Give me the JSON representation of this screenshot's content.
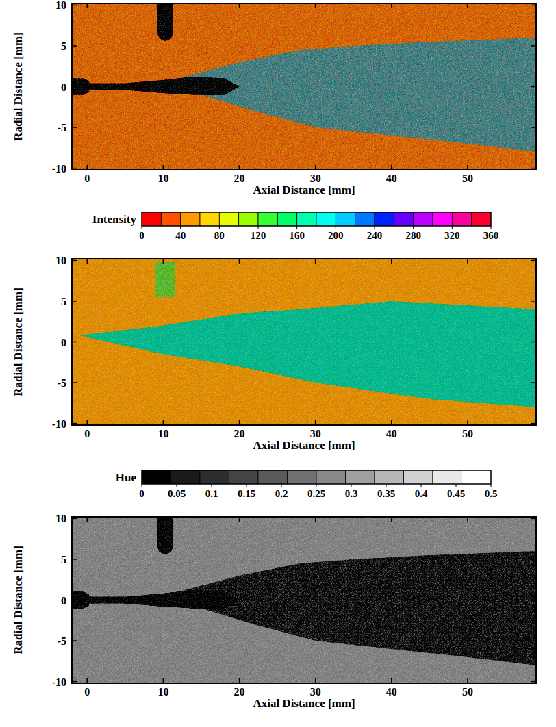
{
  "chart_data": [
    {
      "type": "image",
      "xlabel": "Axial Distance [mm]",
      "ylabel": "Radial Distance [mm]",
      "xlim": [
        -2,
        59
      ],
      "ylim": [
        -10.2,
        10.2
      ],
      "xticks": [
        0,
        10,
        20,
        30,
        40,
        50
      ],
      "yticks": [
        -10,
        -5,
        0,
        5,
        10
      ],
      "color": "#e8942c",
      "shapes": [
        {
          "color": "#86a3a4",
          "x": [
            12,
            20,
            28,
            35,
            45,
            59,
            59,
            50,
            40,
            30,
            22,
            15
          ],
          "y": [
            1,
            3,
            4.5,
            5,
            5.5,
            6,
            -8,
            -7,
            -6,
            -5,
            -3,
            -1
          ]
        },
        {
          "color": "#161616",
          "x": [
            0,
            5,
            10,
            14,
            18,
            20,
            18,
            14,
            10,
            5,
            0
          ],
          "y": [
            0.4,
            0.4,
            0.8,
            1.2,
            1,
            0,
            -1,
            -1,
            -0.8,
            -0.4,
            -0.4
          ]
        },
        {
          "color": "#0a0a0a",
          "x": [
            -2,
            -0.5,
            0.2,
            0.4,
            0.2,
            -0.5,
            -2
          ],
          "y": [
            1,
            1,
            0.7,
            0,
            -0.7,
            -1,
            -1
          ]
        },
        {
          "color": "#0a0a0a",
          "x": [
            9.2,
            11.3,
            11.3,
            11,
            10.25,
            9.5,
            9.2
          ],
          "y": [
            10.2,
            10.2,
            6.6,
            5.9,
            5.6,
            5.9,
            6.6
          ]
        }
      ]
    },
    {
      "type": "image",
      "xlabel": "Axial Distance [mm]",
      "ylabel": "Radial Distance [mm]",
      "xlim": [
        -2,
        59
      ],
      "ylim": [
        -10.2,
        10.2
      ],
      "xticks": [
        0,
        10,
        20,
        30,
        40,
        50
      ],
      "yticks": [
        -10,
        -5,
        0,
        5,
        10
      ],
      "color": "#f0ae30",
      "colorbar": {
        "label": "Intensity",
        "range": [
          0,
          360
        ],
        "ticks": [
          0,
          40,
          80,
          120,
          160,
          200,
          240,
          280,
          320,
          360
        ],
        "colors": [
          "#ff0000",
          "#ff5000",
          "#ff9900",
          "#ffd800",
          "#e6ff00",
          "#99ff00",
          "#33ff33",
          "#00ff66",
          "#00ffb0",
          "#00ffee",
          "#00ccff",
          "#0077ff",
          "#0022ff",
          "#6600ff",
          "#bb00ff",
          "#ff00ff",
          "#ff0099",
          "#ff0033"
        ]
      },
      "shapes": [
        {
          "color": "#3fcfae",
          "x": [
            -1,
            10,
            20,
            28,
            40,
            59,
            59,
            45,
            30,
            20,
            10
          ],
          "y": [
            0.8,
            2,
            3.5,
            4,
            5,
            4,
            -8,
            -7,
            -5,
            -3,
            -1.5
          ]
        },
        {
          "color": "#8fcf7a",
          "x": [
            9,
            11.5,
            11.5,
            9
          ],
          "y": [
            9.8,
            9.8,
            5.5,
            5.5
          ]
        }
      ]
    },
    {
      "type": "image",
      "xlabel": "Axial Distance [mm]",
      "ylabel": "Radial Distance [mm]",
      "xlim": [
        -2,
        59
      ],
      "ylim": [
        -10.2,
        10.2
      ],
      "xticks": [
        0,
        10,
        20,
        30,
        40,
        50
      ],
      "yticks": [
        -10,
        -5,
        0,
        5,
        10
      ],
      "color": "#a6a6a6",
      "colorbar": {
        "label": "Hue",
        "range": [
          0,
          0.5
        ],
        "ticks": [
          0,
          0.05,
          0.1,
          0.15,
          0.2,
          0.25,
          0.3,
          0.35,
          0.4,
          0.45,
          0.5
        ],
        "colors": [
          "#000000",
          "#1a1a1a",
          "#2e2e2e",
          "#444444",
          "#5a5a5a",
          "#717171",
          "#888888",
          "#a0a0a0",
          "#b8b8b8",
          "#d0d0d0",
          "#e8e8e8",
          "#ffffff"
        ]
      },
      "shapes": [
        {
          "color": "#6c6c6c",
          "x": [
            12,
            20,
            28,
            35,
            45,
            59,
            59,
            50,
            40,
            30,
            22,
            15
          ],
          "y": [
            1,
            3,
            4.5,
            5,
            5.5,
            6,
            -8,
            -7,
            -6,
            -5,
            -3,
            -1
          ]
        },
        {
          "color": "#161616",
          "x": [
            0,
            5,
            10,
            14,
            18,
            20,
            18,
            14,
            10,
            5,
            0
          ],
          "y": [
            0.4,
            0.4,
            0.8,
            1.2,
            1,
            0,
            -1,
            -1,
            -0.8,
            -0.4,
            -0.4
          ]
        },
        {
          "color": "#0a0a0a",
          "x": [
            -2,
            -0.5,
            0.2,
            0.4,
            0.2,
            -0.5,
            -2
          ],
          "y": [
            1,
            1,
            0.7,
            0,
            -0.7,
            -1,
            -1
          ]
        },
        {
          "color": "#0a0a0a",
          "x": [
            9.2,
            11.3,
            11.3,
            11,
            10.25,
            9.5,
            9.2
          ],
          "y": [
            10.2,
            10.2,
            6.6,
            5.9,
            5.6,
            5.9,
            6.6
          ]
        }
      ]
    }
  ]
}
